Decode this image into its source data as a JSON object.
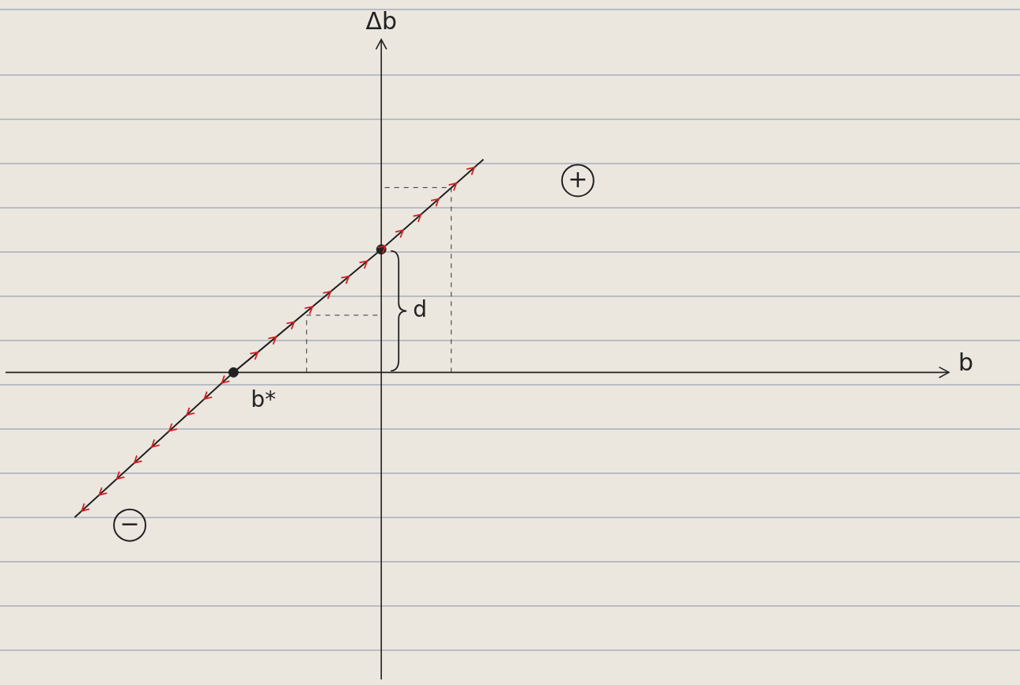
{
  "chart_data": {
    "type": "line",
    "x_label": "b",
    "y_label": "Δb",
    "xlim": [
      -4.78,
      7.22
    ],
    "ylim": [
      -3.92,
      4.25
    ],
    "xticks": [],
    "yticks": [],
    "tick_labels": false,
    "grid": false,
    "x": [
      -3.9,
      -1.88,
      0,
      1.3
    ],
    "values": [
      -1.85,
      0,
      1.57,
      2.72
    ],
    "color": "#222222",
    "marker": "arrow",
    "line_style": "solid",
    "guides": [
      {
        "x": [
          -0.95,
          -0.95,
          0
        ],
        "values": [
          0,
          0.73,
          0.73
        ],
        "color": "#333333",
        "line_style": "dashed"
      },
      {
        "x": [
          0.89,
          0.89,
          0
        ],
        "values": [
          0,
          2.36,
          2.36
        ],
        "color": "#333333",
        "line_style": "dashed"
      }
    ],
    "points": [
      {
        "label": "b*",
        "x": -1.88,
        "y": 0
      },
      {
        "label": "d",
        "x": 0,
        "y": 1.57
      }
    ],
    "annotations": [
      {
        "text": "+",
        "x": 2.5,
        "y": 2.45
      },
      {
        "text": "−",
        "x": -3.2,
        "y": -1.95
      }
    ]
  }
}
